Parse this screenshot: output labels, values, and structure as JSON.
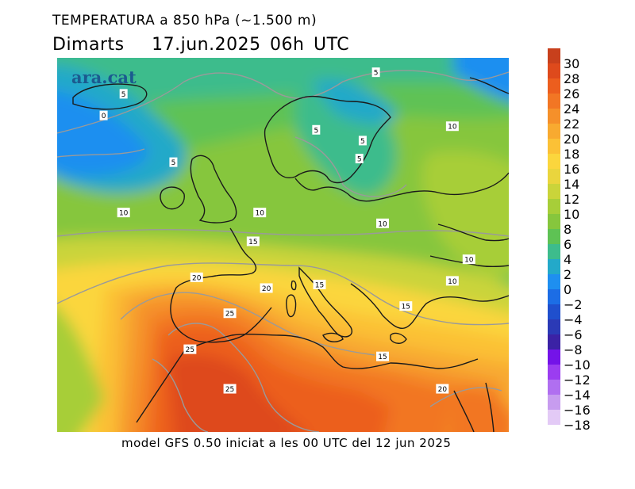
{
  "header": {
    "title": "TEMPERATURA a 850 hPa (~1.500 m)",
    "day": "Dimarts",
    "datetime": "17.jun.2025 06h UTC"
  },
  "map": {
    "watermark": "ara.cat",
    "isotherm_labels": [
      {
        "text": "5",
        "lon": -18,
        "lat": 67
      },
      {
        "text": "5",
        "lon": 20,
        "lat": 70
      },
      {
        "text": "0",
        "lon": -21,
        "lat": 64
      },
      {
        "text": "5",
        "lon": 11,
        "lat": 62
      },
      {
        "text": "5",
        "lon": 18,
        "lat": 60.5
      },
      {
        "text": "5",
        "lon": 17.5,
        "lat": 58
      },
      {
        "text": "10",
        "lon": 31.5,
        "lat": 62.5
      },
      {
        "text": "5",
        "lon": -10.5,
        "lat": 57.5
      },
      {
        "text": "10",
        "lon": -18,
        "lat": 50.5
      },
      {
        "text": "10",
        "lon": 2.5,
        "lat": 50.5
      },
      {
        "text": "10",
        "lon": 21,
        "lat": 49
      },
      {
        "text": "15",
        "lon": 1.5,
        "lat": 46.5
      },
      {
        "text": "10",
        "lon": 34,
        "lat": 44
      },
      {
        "text": "10",
        "lon": 31.5,
        "lat": 41
      },
      {
        "text": "20",
        "lon": -7,
        "lat": 41.5
      },
      {
        "text": "20",
        "lon": 3.5,
        "lat": 40
      },
      {
        "text": "15",
        "lon": 11.5,
        "lat": 40.5
      },
      {
        "text": "15",
        "lon": 24.5,
        "lat": 37.5
      },
      {
        "text": "25",
        "lon": -2,
        "lat": 36.5
      },
      {
        "text": "25",
        "lon": -8,
        "lat": 31.5
      },
      {
        "text": "15",
        "lon": 21,
        "lat": 30.5
      },
      {
        "text": "25",
        "lon": -2,
        "lat": 26
      },
      {
        "text": "20",
        "lon": 30,
        "lat": 26
      }
    ]
  },
  "colorbar": {
    "labels": [
      "30",
      "28",
      "26",
      "24",
      "22",
      "20",
      "18",
      "16",
      "14",
      "12",
      "10",
      "8",
      "6",
      "4",
      "2",
      "0",
      "−2",
      "−4",
      "−6",
      "−8",
      "−10",
      "−12",
      "−14",
      "−16",
      "−18"
    ],
    "colors": [
      "#c8401c",
      "#de4a1c",
      "#ec5e1e",
      "#f27624",
      "#f5902a",
      "#f8aa30",
      "#fbc136",
      "#fbd63d",
      "#ead53d",
      "#cad43a",
      "#a7ce39",
      "#86c63d",
      "#5ec254",
      "#3dbc8c",
      "#23a9c9",
      "#1e8ff0",
      "#1c6de5",
      "#1f4fcd",
      "#2b3ab6",
      "#3b22a5",
      "#7413e8",
      "#9b3df0",
      "#b06ff0",
      "#c79cef",
      "#e3caf6"
    ]
  },
  "footer": {
    "text": "model GFS 0.50 iniciat a les 00 UTC del 12 jun 2025"
  }
}
